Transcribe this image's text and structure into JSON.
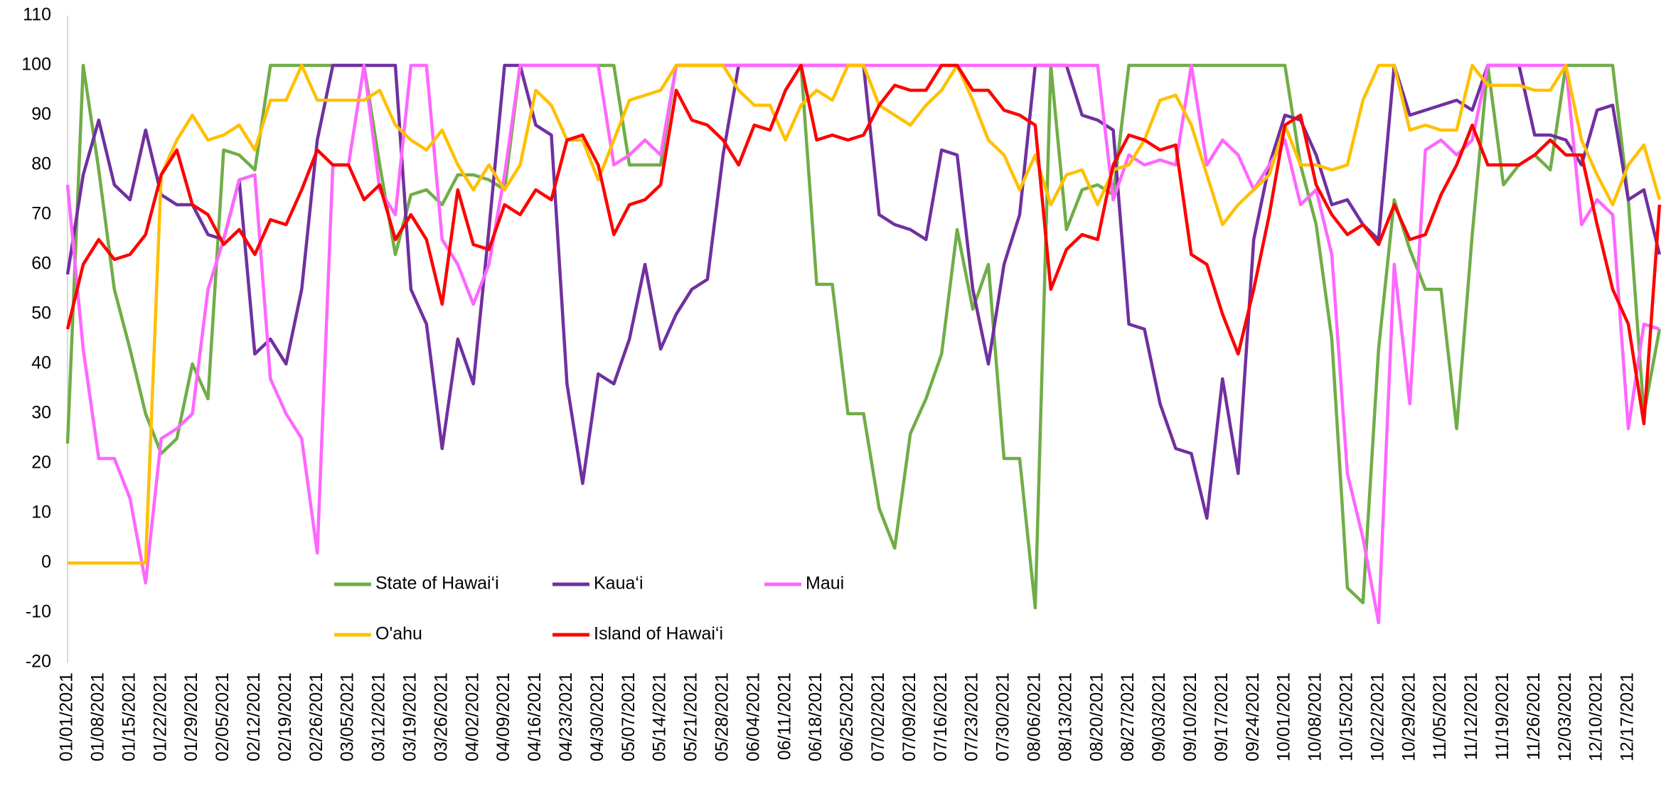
{
  "chart_data": {
    "type": "line",
    "categories": [
      "01/01/2021",
      null,
      "01/08/2021",
      null,
      "01/15/2021",
      null,
      "01/22/2021",
      null,
      "01/29/2021",
      null,
      "02/05/2021",
      null,
      "02/12/2021",
      null,
      "02/19/2021",
      null,
      "02/26/2021",
      null,
      "03/05/2021",
      null,
      "03/12/2021",
      null,
      "03/19/2021",
      null,
      "03/26/2021",
      null,
      "04/02/2021",
      null,
      "04/09/2021",
      null,
      "04/16/2021",
      null,
      "04/23/2021",
      null,
      "04/30/2021",
      null,
      "05/07/2021",
      null,
      "05/14/2021",
      null,
      "05/21/2021",
      null,
      "05/28/2021",
      null,
      "06/04/2021",
      null,
      "06/11/2021",
      null,
      "06/18/2021",
      null,
      "06/25/2021",
      null,
      "07/02/2021",
      null,
      "07/09/2021",
      null,
      "07/16/2021",
      null,
      "07/23/2021",
      null,
      "07/30/2021",
      null,
      "08/06/2021",
      null,
      "08/13/2021",
      null,
      "08/20/2021",
      null,
      "08/27/2021",
      null,
      "09/03/2021",
      null,
      "09/10/2021",
      null,
      "09/17/2021",
      null,
      "09/24/2021",
      null,
      "10/01/2021",
      null,
      "10/08/2021",
      null,
      "10/15/2021",
      null,
      "10/22/2021",
      null,
      "10/29/2021",
      null,
      "11/05/2021",
      null,
      "11/12/2021",
      null,
      "11/19/2021",
      null,
      "11/26/2021",
      null,
      "12/03/2021",
      null,
      "12/10/2021",
      null,
      "12/17/2021",
      null,
      null
    ],
    "series": [
      {
        "name": "State of Hawai‘i",
        "color": "#70ad47",
        "values": [
          24,
          100,
          79,
          55,
          43,
          30,
          22,
          25,
          40,
          33,
          83,
          82,
          79,
          100,
          100,
          100,
          100,
          100,
          100,
          100,
          80,
          62,
          74,
          75,
          72,
          78,
          78,
          77,
          75,
          100,
          100,
          100,
          100,
          100,
          100,
          100,
          80,
          80,
          80,
          100,
          100,
          100,
          100,
          100,
          100,
          100,
          100,
          100,
          56,
          56,
          30,
          30,
          11,
          3,
          26,
          33,
          42,
          67,
          51,
          60,
          21,
          21,
          -9,
          100,
          67,
          75,
          76,
          74,
          100,
          100,
          100,
          100,
          100,
          100,
          100,
          100,
          100,
          100,
          100,
          80,
          68,
          45,
          -5,
          -8,
          43,
          73,
          63,
          55,
          55,
          27,
          66,
          100,
          76,
          80,
          82,
          79,
          100,
          100,
          100,
          100,
          73,
          30,
          47
        ]
      },
      {
        "name": "Kaua‘i",
        "color": "#7030a0",
        "values": [
          58,
          78,
          89,
          76,
          73,
          87,
          74,
          72,
          72,
          66,
          65,
          77,
          42,
          45,
          40,
          55,
          85,
          100,
          100,
          100,
          100,
          100,
          55,
          48,
          23,
          45,
          36,
          67,
          100,
          100,
          88,
          86,
          36,
          16,
          38,
          36,
          45,
          60,
          43,
          50,
          55,
          57,
          82,
          100,
          100,
          100,
          100,
          100,
          100,
          100,
          100,
          100,
          70,
          68,
          67,
          65,
          83,
          82,
          55,
          40,
          60,
          70,
          100,
          100,
          100,
          90,
          89,
          87,
          48,
          47,
          32,
          23,
          22,
          9,
          37,
          18,
          65,
          80,
          90,
          89,
          82,
          72,
          73,
          68,
          65,
          100,
          90,
          91,
          92,
          93,
          91,
          100,
          100,
          100,
          86,
          86,
          85,
          80,
          91,
          92,
          73,
          75,
          62
        ]
      },
      {
        "name": "Maui",
        "color": "#ff66ff",
        "values": [
          76,
          43,
          21,
          21,
          13,
          -4,
          25,
          27,
          30,
          55,
          65,
          77,
          78,
          37,
          30,
          25,
          2,
          80,
          80,
          100,
          75,
          70,
          100,
          100,
          65,
          60,
          52,
          60,
          78,
          100,
          100,
          100,
          100,
          100,
          100,
          80,
          82,
          85,
          82,
          100,
          100,
          100,
          100,
          100,
          100,
          100,
          100,
          100,
          100,
          100,
          100,
          100,
          100,
          100,
          100,
          100,
          100,
          100,
          100,
          100,
          100,
          100,
          100,
          100,
          100,
          100,
          100,
          73,
          82,
          80,
          81,
          80,
          100,
          80,
          85,
          82,
          75,
          80,
          85,
          72,
          75,
          62,
          18,
          5,
          -12,
          60,
          32,
          83,
          85,
          82,
          85,
          100,
          100,
          100,
          100,
          100,
          100,
          68,
          73,
          70,
          27,
          48,
          47
        ]
      },
      {
        "name": "O'ahu",
        "color": "#ffc000",
        "values": [
          0,
          0,
          0,
          0,
          0,
          0,
          78,
          85,
          90,
          85,
          86,
          88,
          83,
          93,
          93,
          100,
          93,
          93,
          93,
          93,
          95,
          88,
          85,
          83,
          87,
          80,
          75,
          80,
          75,
          80,
          95,
          92,
          85,
          85,
          77,
          85,
          93,
          94,
          95,
          100,
          100,
          100,
          100,
          95,
          92,
          92,
          85,
          92,
          95,
          93,
          100,
          100,
          92,
          90,
          88,
          92,
          95,
          100,
          93,
          85,
          82,
          75,
          82,
          72,
          78,
          79,
          72,
          79,
          80,
          85,
          93,
          94,
          88,
          78,
          68,
          72,
          75,
          78,
          88,
          80,
          80,
          79,
          80,
          93,
          100,
          100,
          87,
          88,
          87,
          87,
          100,
          96,
          96,
          96,
          95,
          95,
          100,
          85,
          78,
          72,
          80,
          84,
          73
        ]
      },
      {
        "name": "Island of Hawai‘i",
        "color": "#ff0000",
        "values": [
          47,
          60,
          65,
          61,
          62,
          66,
          78,
          83,
          72,
          70,
          64,
          67,
          62,
          69,
          68,
          75,
          83,
          80,
          80,
          73,
          76,
          65,
          70,
          65,
          52,
          75,
          64,
          63,
          72,
          70,
          75,
          73,
          85,
          86,
          80,
          66,
          72,
          73,
          76,
          95,
          89,
          88,
          85,
          80,
          88,
          87,
          95,
          100,
          85,
          86,
          85,
          86,
          92,
          96,
          95,
          95,
          100,
          100,
          95,
          95,
          91,
          90,
          88,
          55,
          63,
          66,
          65,
          80,
          86,
          85,
          83,
          84,
          62,
          60,
          50,
          42,
          55,
          70,
          88,
          90,
          76,
          70,
          66,
          68,
          64,
          72,
          65,
          66,
          74,
          80,
          88,
          80,
          80,
          80,
          82,
          85,
          82,
          82,
          68,
          55,
          48,
          28,
          72
        ]
      }
    ],
    "ylim": [
      -20,
      110
    ],
    "yticks": [
      -20,
      -10,
      0,
      10,
      20,
      30,
      40,
      50,
      60,
      70,
      80,
      90,
      100,
      110
    ],
    "grid": false,
    "legend": "bottom-center"
  }
}
